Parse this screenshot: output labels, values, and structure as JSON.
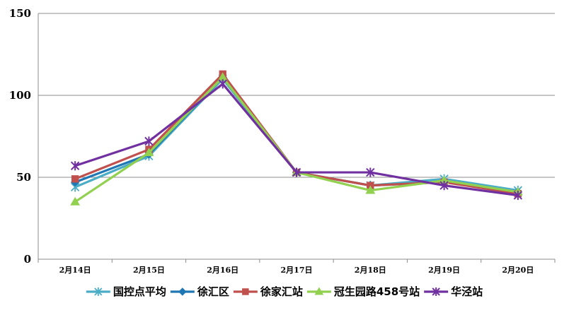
{
  "chart_data": {
    "type": "line",
    "title": "",
    "xlabel": "",
    "ylabel": "",
    "categories": [
      "2月14日",
      "2月15日",
      "2月16日",
      "2月17日",
      "2月18日",
      "2月19日",
      "2月20日"
    ],
    "ylim": [
      0,
      150
    ],
    "yticks": [
      0,
      50,
      100,
      150
    ],
    "grid": true,
    "legend_position": "bottom",
    "series": [
      {
        "name": "国控点平均",
        "color": "#4bacc6",
        "marker": "asterisk",
        "values": [
          44,
          63,
          110,
          53,
          45,
          49,
          42
        ]
      },
      {
        "name": "徐汇区",
        "color": "#1f77b4",
        "marker": "diamond",
        "values": [
          47,
          64,
          111,
          53,
          45,
          47,
          41
        ]
      },
      {
        "name": "徐家汇站",
        "color": "#c0504d",
        "marker": "square",
        "values": [
          49,
          67,
          113,
          53,
          45,
          47,
          40
        ]
      },
      {
        "name": "冠生园路458号站",
        "color": "#92d050",
        "marker": "triangle",
        "values": [
          35,
          65,
          111,
          53,
          42,
          48,
          41
        ]
      },
      {
        "name": "华泾站",
        "color": "#7030a0",
        "marker": "star",
        "values": [
          57,
          72,
          107,
          53,
          53,
          45,
          39
        ]
      }
    ]
  }
}
